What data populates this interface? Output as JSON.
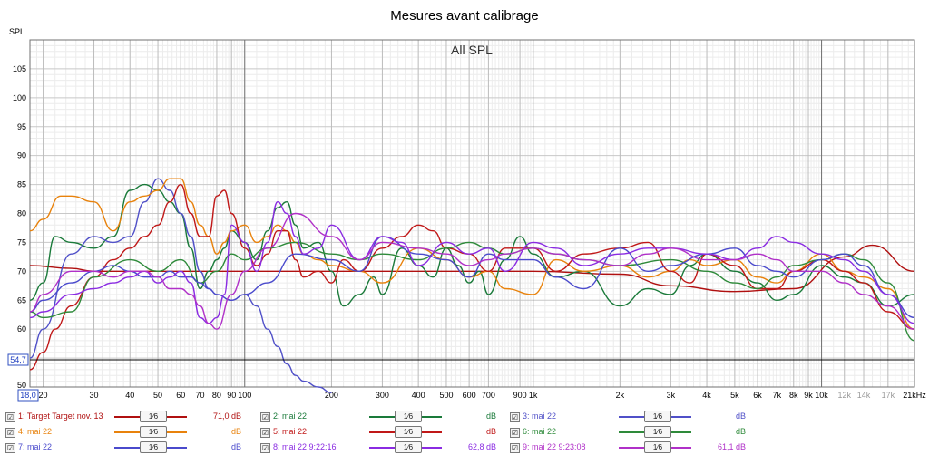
{
  "window": {
    "title": "Mesures avant calibrage"
  },
  "plot": {
    "label": "All SPL",
    "y_axis_unit": "SPL",
    "cursor_value": "54,7",
    "cursor_freq": "18,0"
  },
  "chart_data": {
    "type": "line",
    "title": "Mesures avant calibrage",
    "subtitle": "All SPL",
    "xlabel": "",
    "ylabel": "SPL",
    "xscale": "log",
    "xlim": [
      18,
      21000
    ],
    "ylim": [
      50,
      110
    ],
    "grid": true,
    "x_ticks": [
      {
        "v": 20,
        "label": "20"
      },
      {
        "v": 30,
        "label": "30"
      },
      {
        "v": 40,
        "label": "40"
      },
      {
        "v": 50,
        "label": "50"
      },
      {
        "v": 60,
        "label": "60"
      },
      {
        "v": 70,
        "label": "70"
      },
      {
        "v": 80,
        "label": "80"
      },
      {
        "v": 90,
        "label": "90"
      },
      {
        "v": 100,
        "label": "100"
      },
      {
        "v": 200,
        "label": "200"
      },
      {
        "v": 300,
        "label": "300"
      },
      {
        "v": 400,
        "label": "400"
      },
      {
        "v": 500,
        "label": "500"
      },
      {
        "v": 600,
        "label": "600"
      },
      {
        "v": 700,
        "label": "700"
      },
      {
        "v": 900,
        "label": "900"
      },
      {
        "v": 1000,
        "label": "1k"
      },
      {
        "v": 2000,
        "label": "2k"
      },
      {
        "v": 3000,
        "label": "3k"
      },
      {
        "v": 4000,
        "label": "4k"
      },
      {
        "v": 5000,
        "label": "5k"
      },
      {
        "v": 6000,
        "label": "6k"
      },
      {
        "v": 7000,
        "label": "7k"
      },
      {
        "v": 8000,
        "label": "8k"
      },
      {
        "v": 9000,
        "label": "9k"
      },
      {
        "v": 10000,
        "label": "10k"
      },
      {
        "v": 12000,
        "label": "12k"
      },
      {
        "v": 14000,
        "label": "14k"
      },
      {
        "v": 17000,
        "label": "17k"
      },
      {
        "v": 21000,
        "label": "21kHz"
      }
    ],
    "y_ticks": [
      55,
      60,
      65,
      70,
      75,
      80,
      85,
      90,
      95,
      100,
      105
    ],
    "cursor_y": 54.7,
    "series": [
      {
        "name": "1: Target Target nov. 13",
        "color": "#b01010",
        "x": [
          18,
          25,
          30,
          40,
          60,
          100,
          200,
          500,
          1000,
          2000,
          3000,
          5000,
          8000,
          12000,
          15000,
          21000
        ],
        "y": [
          71,
          70.5,
          70,
          70,
          70,
          70,
          70,
          70,
          70,
          69.5,
          67.5,
          66.5,
          67,
          72.5,
          74.5,
          70
        ]
      },
      {
        "name": "2: mai 22",
        "color": "#1a7a3a",
        "x": [
          18,
          20,
          22,
          25,
          30,
          35,
          40,
          45,
          50,
          55,
          60,
          65,
          70,
          75,
          80,
          85,
          90,
          100,
          110,
          120,
          130,
          140,
          150,
          160,
          180,
          200,
          220,
          250,
          280,
          300,
          350,
          400,
          450,
          500,
          550,
          600,
          650,
          700,
          800,
          900,
          1000,
          1200,
          1500,
          2000,
          2500,
          3000,
          3500,
          4000,
          5000,
          6000,
          7000,
          8000,
          10000,
          12000,
          14000,
          17000,
          21000
        ],
        "y": [
          65,
          68,
          76,
          75,
          74,
          76,
          84,
          85,
          84,
          82,
          80,
          74,
          67,
          70,
          72,
          74,
          77,
          75,
          72,
          77,
          81,
          82,
          78,
          74,
          75,
          70,
          64,
          66,
          69,
          66,
          74,
          71,
          69,
          74,
          71,
          68,
          70,
          66,
          72,
          76,
          73,
          69,
          70,
          64,
          67,
          66,
          71,
          73,
          70,
          68,
          65,
          66,
          71,
          69,
          68,
          64,
          66
        ]
      },
      {
        "name": "3: mai 22",
        "color": "#5050c8",
        "x": [
          18,
          20,
          25,
          30,
          35,
          40,
          45,
          50,
          55,
          60,
          65,
          70,
          75,
          80,
          90,
          100,
          110,
          120,
          130,
          140,
          150,
          160,
          180,
          200
        ],
        "y": [
          55,
          60,
          73,
          76,
          75,
          76,
          82,
          86,
          84,
          80,
          76,
          70,
          67,
          66,
          65,
          66,
          64,
          60,
          57,
          54,
          52,
          51,
          50,
          49
        ]
      },
      {
        "name": "4: mai 22",
        "color": "#e8820c",
        "x": [
          18,
          20,
          23,
          25,
          30,
          35,
          40,
          45,
          50,
          55,
          60,
          65,
          70,
          75,
          80,
          85,
          90,
          100,
          110,
          120,
          130,
          140,
          150,
          160,
          180,
          200,
          250,
          300,
          400,
          500,
          600,
          700,
          800,
          1000,
          1200,
          1500,
          2000,
          2500,
          3000,
          3500,
          4000,
          5000,
          6000,
          7000,
          8000,
          10000,
          12000,
          14000,
          17000,
          21000
        ],
        "y": [
          77,
          79,
          83,
          83,
          82,
          77,
          82,
          83,
          84,
          86,
          86,
          82,
          78,
          76,
          73,
          75,
          77,
          78,
          75,
          76,
          78,
          77,
          75,
          73,
          72,
          71,
          70,
          68,
          74,
          72,
          69,
          70,
          67,
          66,
          72,
          70,
          71,
          69,
          70,
          72,
          71,
          72,
          69,
          68,
          70,
          73,
          70,
          69,
          67,
          60
        ]
      },
      {
        "name": "5: mai 22",
        "color": "#c01818",
        "x": [
          18,
          20,
          22,
          25,
          30,
          35,
          40,
          45,
          50,
          55,
          60,
          65,
          70,
          75,
          80,
          85,
          90,
          100,
          110,
          120,
          130,
          140,
          150,
          160,
          180,
          200,
          220,
          250,
          300,
          350,
          400,
          450,
          500,
          600,
          700,
          800,
          1000,
          1200,
          1500,
          2000,
          2500,
          3000,
          3500,
          4000,
          5000,
          6000,
          7000,
          8000,
          10000,
          12000,
          14000,
          17000,
          21000
        ],
        "y": [
          53,
          56,
          60,
          64,
          69,
          72,
          74,
          76,
          78,
          82,
          85,
          80,
          76,
          76,
          83,
          84,
          80,
          74,
          71,
          73,
          77,
          77,
          72,
          69,
          70,
          68,
          72,
          70,
          74,
          76,
          78,
          77,
          74,
          73,
          70,
          74,
          74,
          70,
          73,
          74,
          75,
          70,
          68,
          73,
          71,
          67,
          67,
          70,
          72,
          70,
          68,
          63,
          60
        ]
      },
      {
        "name": "6: mai 22",
        "color": "#2e8a3a",
        "x": [
          18,
          20,
          25,
          30,
          40,
          50,
          60,
          70,
          80,
          90,
          100,
          120,
          150,
          200,
          250,
          300,
          400,
          500,
          600,
          700,
          800,
          1000,
          1200,
          1500,
          2000,
          3000,
          4000,
          5000,
          6000,
          7000,
          8000,
          10000,
          12000,
          14000,
          17000,
          21000
        ],
        "y": [
          63,
          62,
          63,
          69,
          72,
          70,
          72,
          68,
          70,
          73,
          72,
          74,
          75,
          73,
          72,
          73,
          72,
          74,
          75,
          74,
          73,
          74,
          73,
          72,
          71,
          72,
          70,
          68,
          67,
          69,
          71,
          72,
          73,
          72,
          68,
          58
        ]
      },
      {
        "name": "7: mai 22",
        "color": "#4a4acc",
        "x": [
          18,
          20,
          25,
          30,
          35,
          40,
          45,
          50,
          55,
          60,
          65,
          70,
          75,
          80,
          90,
          100,
          120,
          150,
          200,
          250,
          300,
          400,
          500,
          600,
          700,
          800,
          1000,
          1200,
          1500,
          2000,
          2500,
          3000,
          4000,
          5000,
          6000,
          7000,
          8000,
          10000,
          12000,
          14000,
          17000,
          21000
        ],
        "y": [
          63,
          65,
          68,
          70,
          71,
          70,
          69,
          69,
          70,
          69,
          69,
          68,
          67,
          66,
          65,
          66,
          68,
          73,
          72,
          70,
          76,
          73,
          72,
          69,
          73,
          72,
          72,
          69,
          67,
          74,
          70,
          71,
          73,
          74,
          71,
          70,
          69,
          72,
          73,
          71,
          66,
          62
        ]
      },
      {
        "name": "8: mai 22 9:22:16",
        "color": "#8a2be2",
        "x": [
          18,
          20,
          25,
          30,
          35,
          40,
          45,
          50,
          55,
          60,
          65,
          70,
          75,
          80,
          85,
          90,
          100,
          110,
          120,
          130,
          140,
          150,
          160,
          180,
          200,
          250,
          300,
          350,
          400,
          500,
          600,
          700,
          800,
          1000,
          1200,
          1500,
          2000,
          2500,
          3000,
          4000,
          5000,
          6000,
          7000,
          8000,
          10000,
          12000,
          14000,
          17000,
          21000
        ],
        "y": [
          62,
          63,
          66,
          67,
          68,
          69,
          70,
          68,
          69,
          70,
          68,
          62,
          61,
          62,
          66,
          78,
          75,
          70,
          75,
          82,
          80,
          76,
          73,
          74,
          78,
          72,
          76,
          75,
          71,
          75,
          73,
          74,
          70,
          75,
          74,
          71,
          73,
          74,
          74,
          73,
          72,
          74,
          76,
          75,
          73,
          72,
          70,
          66,
          61
        ]
      },
      {
        "name": "9: mai 22 9:23:08",
        "color": "#b030c8",
        "x": [
          18,
          20,
          25,
          30,
          35,
          40,
          45,
          50,
          55,
          60,
          65,
          70,
          75,
          80,
          90,
          100,
          120,
          150,
          200,
          250,
          300,
          400,
          500,
          600,
          700,
          800,
          1000,
          1200,
          1500,
          2000,
          2500,
          3000,
          4000,
          5000,
          6000,
          7000,
          8000,
          10000,
          12000,
          14000,
          17000,
          21000
        ],
        "y": [
          63,
          66,
          70,
          70,
          69,
          70,
          70,
          69,
          67,
          67,
          66,
          64,
          61,
          60,
          66,
          70,
          74,
          80,
          76,
          72,
          75,
          74,
          73,
          71,
          72,
          73,
          74,
          73,
          72,
          71,
          73,
          74,
          72,
          72,
          73,
          72,
          70,
          70,
          68,
          66,
          64,
          60
        ]
      }
    ]
  },
  "legend": {
    "items": [
      {
        "checkbox": "☑",
        "name": "1: Target Target nov. 13",
        "smoothing": "1⁄6",
        "db": "71,0 dB",
        "color": "#b01010"
      },
      {
        "checkbox": "☑",
        "name": "2: mai 22",
        "smoothing": "1⁄6",
        "db": "dB",
        "color": "#1a7a3a"
      },
      {
        "checkbox": "☑",
        "name": "3: mai 22",
        "smoothing": "1⁄6",
        "db": "dB",
        "color": "#5050c8"
      },
      {
        "checkbox": "☑",
        "name": "4: mai 22",
        "smoothing": "1⁄6",
        "db": "dB",
        "color": "#e8820c"
      },
      {
        "checkbox": "☑",
        "name": "5: mai 22",
        "smoothing": "1⁄6",
        "db": "dB",
        "color": "#c01818"
      },
      {
        "checkbox": "☑",
        "name": "6: mai 22",
        "smoothing": "1⁄6",
        "db": "dB",
        "color": "#2e8a3a"
      },
      {
        "checkbox": "☑",
        "name": "7: mai 22",
        "smoothing": "1⁄6",
        "db": "dB",
        "color": "#4a4acc"
      },
      {
        "checkbox": "☑",
        "name": "8: mai 22 9:22:16",
        "smoothing": "1⁄6",
        "db": "62,8 dB",
        "color": "#8a2be2"
      },
      {
        "checkbox": "☑",
        "name": "9: mai 22 9:23:08",
        "smoothing": "1⁄6",
        "db": "61,1 dB",
        "color": "#b030c8"
      }
    ]
  }
}
